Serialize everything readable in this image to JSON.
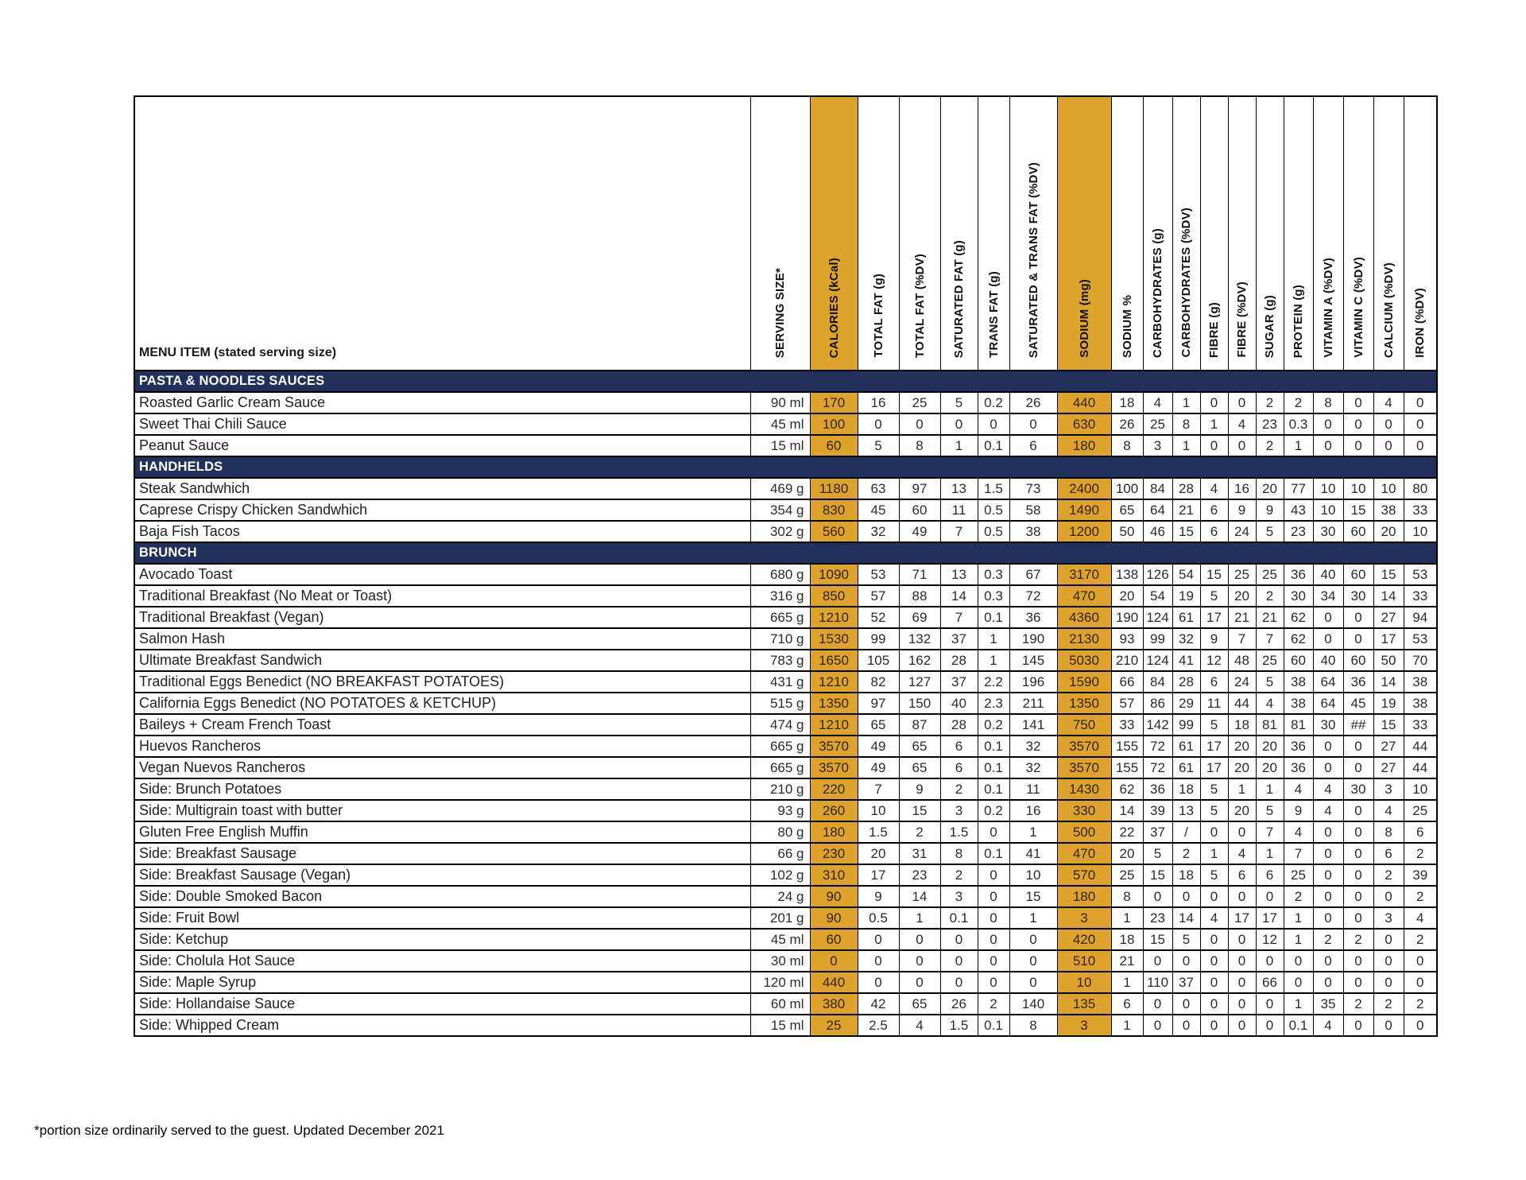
{
  "footnote": "*portion size ordinarily served to the guest. Updated December 2021",
  "table": {
    "item_header": "MENU ITEM (stated serving size)",
    "columns": [
      "SERVING SIZE*",
      "CALORIES (kCal)",
      "TOTAL FAT (g)",
      "TOTAL FAT (%DV)",
      "SATURATED FAT (g)",
      "TRANS FAT (g)",
      "SATURATED & TRANS FAT (%DV)",
      "SODIUM (mg)",
      "SODIUM %",
      "CARBOHYDRATES (g)",
      "CARBOHYDRATES (%DV)",
      "FIBRE (g)",
      "FIBRE (%DV)",
      "SUGAR (g)",
      "PROTEIN (g)",
      "VITAMIN A (%DV)",
      "VITAMIN C (%DV)",
      "CALCIUM (%DV)",
      "IRON (%DV)"
    ],
    "highlight_column_indexes": [
      1,
      7
    ],
    "colors": {
      "header_bg": "#dae3f2",
      "highlight_orange": "#dea32c",
      "section_bar_bg": "#22305c",
      "section_bar_text": "#ffffff",
      "border": "#000000",
      "page_bg": "#ffffff"
    },
    "sections": [
      {
        "name": "PASTA & NOODLES SAUCES",
        "rows": [
          {
            "item": "Roasted Garlic Cream Sauce",
            "values": [
              "90 ml",
              "170",
              "16",
              "25",
              "5",
              "0.2",
              "26",
              "440",
              "18",
              "4",
              "1",
              "0",
              "0",
              "2",
              "2",
              "8",
              "0",
              "4",
              "0"
            ]
          },
          {
            "item": "Sweet Thai Chili Sauce",
            "values": [
              "45 ml",
              "100",
              "0",
              "0",
              "0",
              "0",
              "0",
              "630",
              "26",
              "25",
              "8",
              "1",
              "4",
              "23",
              "0.3",
              "0",
              "0",
              "0",
              "0"
            ]
          },
          {
            "item": "Peanut Sauce",
            "values": [
              "15 ml",
              "60",
              "5",
              "8",
              "1",
              "0.1",
              "6",
              "180",
              "8",
              "3",
              "1",
              "0",
              "0",
              "2",
              "1",
              "0",
              "0",
              "0",
              "0"
            ]
          }
        ]
      },
      {
        "name": "HANDHELDS",
        "rows": [
          {
            "item": "Steak Sandwhich",
            "values": [
              "469 g",
              "1180",
              "63",
              "97",
              "13",
              "1.5",
              "73",
              "2400",
              "100",
              "84",
              "28",
              "4",
              "16",
              "20",
              "77",
              "10",
              "10",
              "10",
              "80"
            ]
          },
          {
            "item": "Caprese Crispy Chicken Sandwhich",
            "values": [
              "354 g",
              "830",
              "45",
              "60",
              "11",
              "0.5",
              "58",
              "1490",
              "65",
              "64",
              "21",
              "6",
              "9",
              "9",
              "43",
              "10",
              "15",
              "38",
              "33"
            ]
          },
          {
            "item": "Baja Fish Tacos",
            "values": [
              "302 g",
              "560",
              "32",
              "49",
              "7",
              "0.5",
              "38",
              "1200",
              "50",
              "46",
              "15",
              "6",
              "24",
              "5",
              "23",
              "30",
              "60",
              "20",
              "10"
            ]
          }
        ]
      },
      {
        "name": "BRUNCH",
        "rows": [
          {
            "item": "Avocado Toast",
            "values": [
              "680 g",
              "1090",
              "53",
              "71",
              "13",
              "0.3",
              "67",
              "3170",
              "138",
              "126",
              "54",
              "15",
              "25",
              "25",
              "36",
              "40",
              "60",
              "15",
              "53"
            ]
          },
          {
            "item": "Traditional Breakfast (No Meat or Toast)",
            "values": [
              "316 g",
              "850",
              "57",
              "88",
              "14",
              "0.3",
              "72",
              "470",
              "20",
              "54",
              "19",
              "5",
              "20",
              "2",
              "30",
              "34",
              "30",
              "14",
              "33"
            ]
          },
          {
            "item": "Traditional Breakfast (Vegan)",
            "values": [
              "665 g",
              "1210",
              "52",
              "69",
              "7",
              "0.1",
              "36",
              "4360",
              "190",
              "124",
              "61",
              "17",
              "21",
              "21",
              "62",
              "0",
              "0",
              "27",
              "94"
            ]
          },
          {
            "item": "Salmon Hash",
            "values": [
              "710 g",
              "1530",
              "99",
              "132",
              "37",
              "1",
              "190",
              "2130",
              "93",
              "99",
              "32",
              "9",
              "7",
              "7",
              "62",
              "0",
              "0",
              "17",
              "53"
            ]
          },
          {
            "item": "Ultimate Breakfast Sandwich",
            "values": [
              "783 g",
              "1650",
              "105",
              "162",
              "28",
              "1",
              "145",
              "5030",
              "210",
              "124",
              "41",
              "12",
              "48",
              "25",
              "60",
              "40",
              "60",
              "50",
              "70"
            ]
          },
          {
            "item": "Traditional Eggs Benedict   (NO BREAKFAST POTATOES)",
            "values": [
              "431 g",
              "1210",
              "82",
              "127",
              "37",
              "2.2",
              "196",
              "1590",
              "66",
              "84",
              "28",
              "6",
              "24",
              "5",
              "38",
              "64",
              "36",
              "14",
              "38"
            ]
          },
          {
            "item": "California Eggs Benedict  (NO  POTATOES & KETCHUP)",
            "values": [
              "515 g",
              "1350",
              "97",
              "150",
              "40",
              "2.3",
              "211",
              "1350",
              "57",
              "86",
              "29",
              "11",
              "44",
              "4",
              "38",
              "64",
              "45",
              "19",
              "38"
            ]
          },
          {
            "item": "Baileys + Cream French Toast",
            "values": [
              "474 g",
              "1210",
              "65",
              "87",
              "28",
              "0.2",
              "141",
              "750",
              "33",
              "142",
              "99",
              "5",
              "18",
              "81",
              "81",
              "30",
              "##",
              "15",
              "33"
            ]
          },
          {
            "item": "Huevos Rancheros",
            "values": [
              "665 g",
              "3570",
              "49",
              "65",
              "6",
              "0.1",
              "32",
              "3570",
              "155",
              "72",
              "61",
              "17",
              "20",
              "20",
              "36",
              "0",
              "0",
              "27",
              "44"
            ]
          },
          {
            "item": "Vegan Nuevos Rancheros",
            "values": [
              "665 g",
              "3570",
              "49",
              "65",
              "6",
              "0.1",
              "32",
              "3570",
              "155",
              "72",
              "61",
              "17",
              "20",
              "20",
              "36",
              "0",
              "0",
              "27",
              "44"
            ]
          },
          {
            "item": "Side: Brunch Potatoes",
            "values": [
              "210 g",
              "220",
              "7",
              "9",
              "2",
              "0.1",
              "11",
              "1430",
              "62",
              "36",
              "18",
              "5",
              "1",
              "1",
              "4",
              "4",
              "30",
              "3",
              "10"
            ]
          },
          {
            "item": "Side: Multigrain toast with butter",
            "values": [
              "93 g",
              "260",
              "10",
              "15",
              "3",
              "0.2",
              "16",
              "330",
              "14",
              "39",
              "13",
              "5",
              "20",
              "5",
              "9",
              "4",
              "0",
              "4",
              "25"
            ]
          },
          {
            "item": "Gluten Free English Muffin",
            "values": [
              "80 g",
              "180",
              "1.5",
              "2",
              "1.5",
              "0",
              "1",
              "500",
              "22",
              "37",
              "/",
              "0",
              "0",
              "7",
              "4",
              "0",
              "0",
              "8",
              "6"
            ]
          },
          {
            "item": "Side: Breakfast Sausage",
            "values": [
              "66 g",
              "230",
              "20",
              "31",
              "8",
              "0.1",
              "41",
              "470",
              "20",
              "5",
              "2",
              "1",
              "4",
              "1",
              "7",
              "0",
              "0",
              "6",
              "2"
            ]
          },
          {
            "item": "Side: Breakfast Sausage (Vegan)",
            "values": [
              "102 g",
              "310",
              "17",
              "23",
              "2",
              "0",
              "10",
              "570",
              "25",
              "15",
              "18",
              "5",
              "6",
              "6",
              "25",
              "0",
              "0",
              "2",
              "39"
            ]
          },
          {
            "item": "Side: Double Smoked Bacon",
            "values": [
              "24 g",
              "90",
              "9",
              "14",
              "3",
              "0",
              "15",
              "180",
              "8",
              "0",
              "0",
              "0",
              "0",
              "0",
              "2",
              "0",
              "0",
              "0",
              "2"
            ]
          },
          {
            "item": "Side: Fruit Bowl",
            "values": [
              "201 g",
              "90",
              "0.5",
              "1",
              "0.1",
              "0",
              "1",
              "3",
              "1",
              "23",
              "14",
              "4",
              "17",
              "17",
              "1",
              "0",
              "0",
              "3",
              "4"
            ]
          },
          {
            "item": "Side: Ketchup",
            "values": [
              "45 ml",
              "60",
              "0",
              "0",
              "0",
              "0",
              "0",
              "420",
              "18",
              "15",
              "5",
              "0",
              "0",
              "12",
              "1",
              "2",
              "2",
              "0",
              "2"
            ]
          },
          {
            "item": "Side: Cholula Hot Sauce",
            "values": [
              "30 ml",
              "0",
              "0",
              "0",
              "0",
              "0",
              "0",
              "510",
              "21",
              "0",
              "0",
              "0",
              "0",
              "0",
              "0",
              "0",
              "0",
              "0",
              "0"
            ]
          },
          {
            "item": "Side: Maple Syrup",
            "values": [
              "120 ml",
              "440",
              "0",
              "0",
              "0",
              "0",
              "0",
              "10",
              "1",
              "110",
              "37",
              "0",
              "0",
              "66",
              "0",
              "0",
              "0",
              "0",
              "0"
            ]
          },
          {
            "item": "Side: Hollandaise Sauce",
            "values": [
              "60 ml",
              "380",
              "42",
              "65",
              "26",
              "2",
              "140",
              "135",
              "6",
              "0",
              "0",
              "0",
              "0",
              "0",
              "1",
              "35",
              "2",
              "2",
              "2"
            ]
          },
          {
            "item": "Side: Whipped Cream",
            "values": [
              "15 ml",
              "25",
              "2.5",
              "4",
              "1.5",
              "0.1",
              "8",
              "3",
              "1",
              "0",
              "0",
              "0",
              "0",
              "0",
              "0.1",
              "4",
              "0",
              "0",
              "0"
            ]
          }
        ]
      }
    ]
  }
}
